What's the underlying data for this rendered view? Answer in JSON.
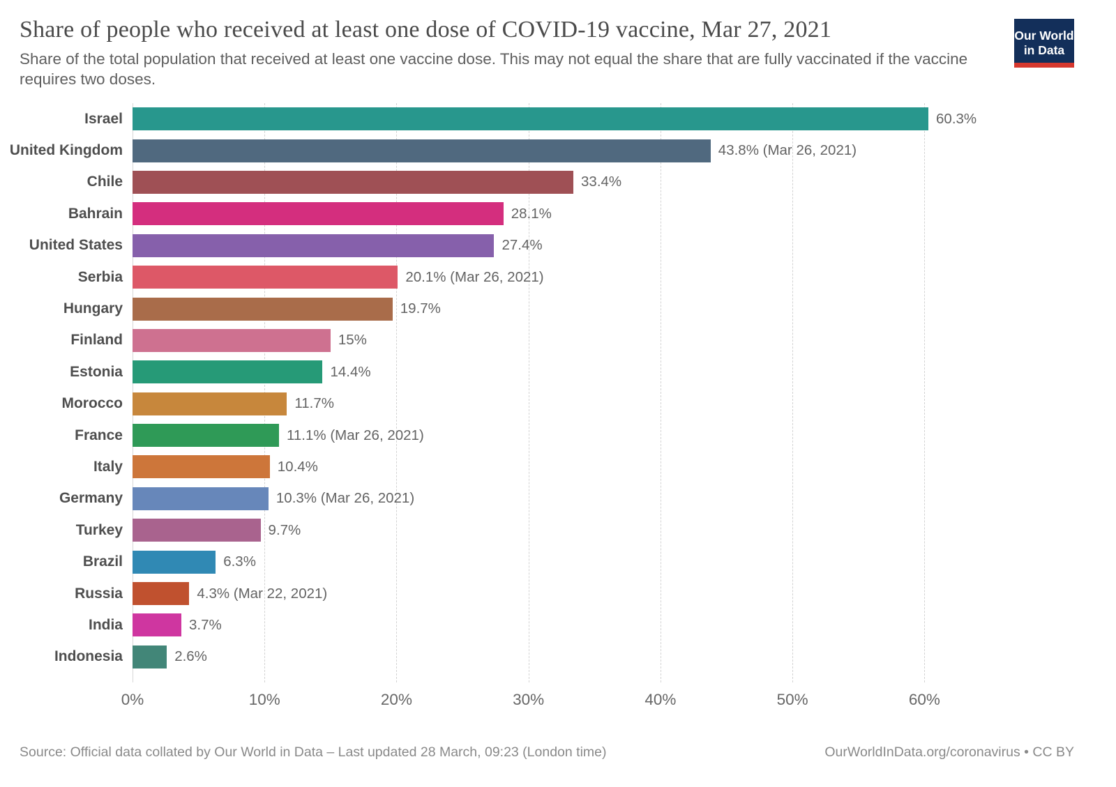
{
  "header": {
    "title": "Share of people who received at least one dose of COVID-19 vaccine, Mar 27, 2021",
    "subtitle": "Share of the total population that received at least one vaccine dose. This may not equal the share that are fully vaccinated if the vaccine requires two doses.",
    "logo": {
      "line1": "Our World",
      "line2": "in Data",
      "bg_color": "#132f5a",
      "stripe_color": "#d6382e"
    }
  },
  "chart_data": {
    "type": "bar",
    "orientation": "horizontal",
    "title": "Share of people who received at least one dose of COVID-19 vaccine, Mar 27, 2021",
    "xlabel": "",
    "ylabel": "",
    "xlim": [
      0,
      72.4
    ],
    "x_tick_values": [
      0,
      10,
      20,
      30,
      40,
      50,
      60
    ],
    "x_ticks": [
      "0%",
      "10%",
      "20%",
      "30%",
      "40%",
      "50%",
      "60%"
    ],
    "grid": "dashed-vertical",
    "legend": "none",
    "series": [
      {
        "label": "Israel",
        "value": 60.3,
        "value_label": "60.3%",
        "color": "#28978d"
      },
      {
        "label": "United Kingdom",
        "value": 43.8,
        "value_label": "43.8% (Mar 26, 2021)",
        "color": "#50697f"
      },
      {
        "label": "Chile",
        "value": 33.4,
        "value_label": "33.4%",
        "color": "#9f5055"
      },
      {
        "label": "Bahrain",
        "value": 28.1,
        "value_label": "28.1%",
        "color": "#d42e7e"
      },
      {
        "label": "United States",
        "value": 27.4,
        "value_label": "27.4%",
        "color": "#8660ab"
      },
      {
        "label": "Serbia",
        "value": 20.1,
        "value_label": "20.1% (Mar 26, 2021)",
        "color": "#dd5867"
      },
      {
        "label": "Hungary",
        "value": 19.7,
        "value_label": "19.7%",
        "color": "#a96c4a"
      },
      {
        "label": "Finland",
        "value": 15.0,
        "value_label": "15%",
        "color": "#ce7190"
      },
      {
        "label": "Estonia",
        "value": 14.4,
        "value_label": "14.4%",
        "color": "#269a77"
      },
      {
        "label": "Morocco",
        "value": 11.7,
        "value_label": "11.7%",
        "color": "#c7873c"
      },
      {
        "label": "France",
        "value": 11.1,
        "value_label": "11.1% (Mar 26, 2021)",
        "color": "#2f9a57"
      },
      {
        "label": "Italy",
        "value": 10.4,
        "value_label": "10.4%",
        "color": "#cd763a"
      },
      {
        "label": "Germany",
        "value": 10.3,
        "value_label": "10.3% (Mar 26, 2021)",
        "color": "#6787ba"
      },
      {
        "label": "Turkey",
        "value": 9.7,
        "value_label": "9.7%",
        "color": "#a9638e"
      },
      {
        "label": "Brazil",
        "value": 6.3,
        "value_label": "6.3%",
        "color": "#3089b4"
      },
      {
        "label": "Russia",
        "value": 4.3,
        "value_label": "4.3% (Mar 22, 2021)",
        "color": "#c0512f"
      },
      {
        "label": "India",
        "value": 3.7,
        "value_label": "3.7%",
        "color": "#cf36a0"
      },
      {
        "label": "Indonesia",
        "value": 2.6,
        "value_label": "2.6%",
        "color": "#428678"
      }
    ]
  },
  "footer": {
    "source": "Source: Official data collated by Our World in Data – Last updated 28 March, 09:23 (London time)",
    "link": "OurWorldInData.org/coronavirus • CC BY"
  }
}
